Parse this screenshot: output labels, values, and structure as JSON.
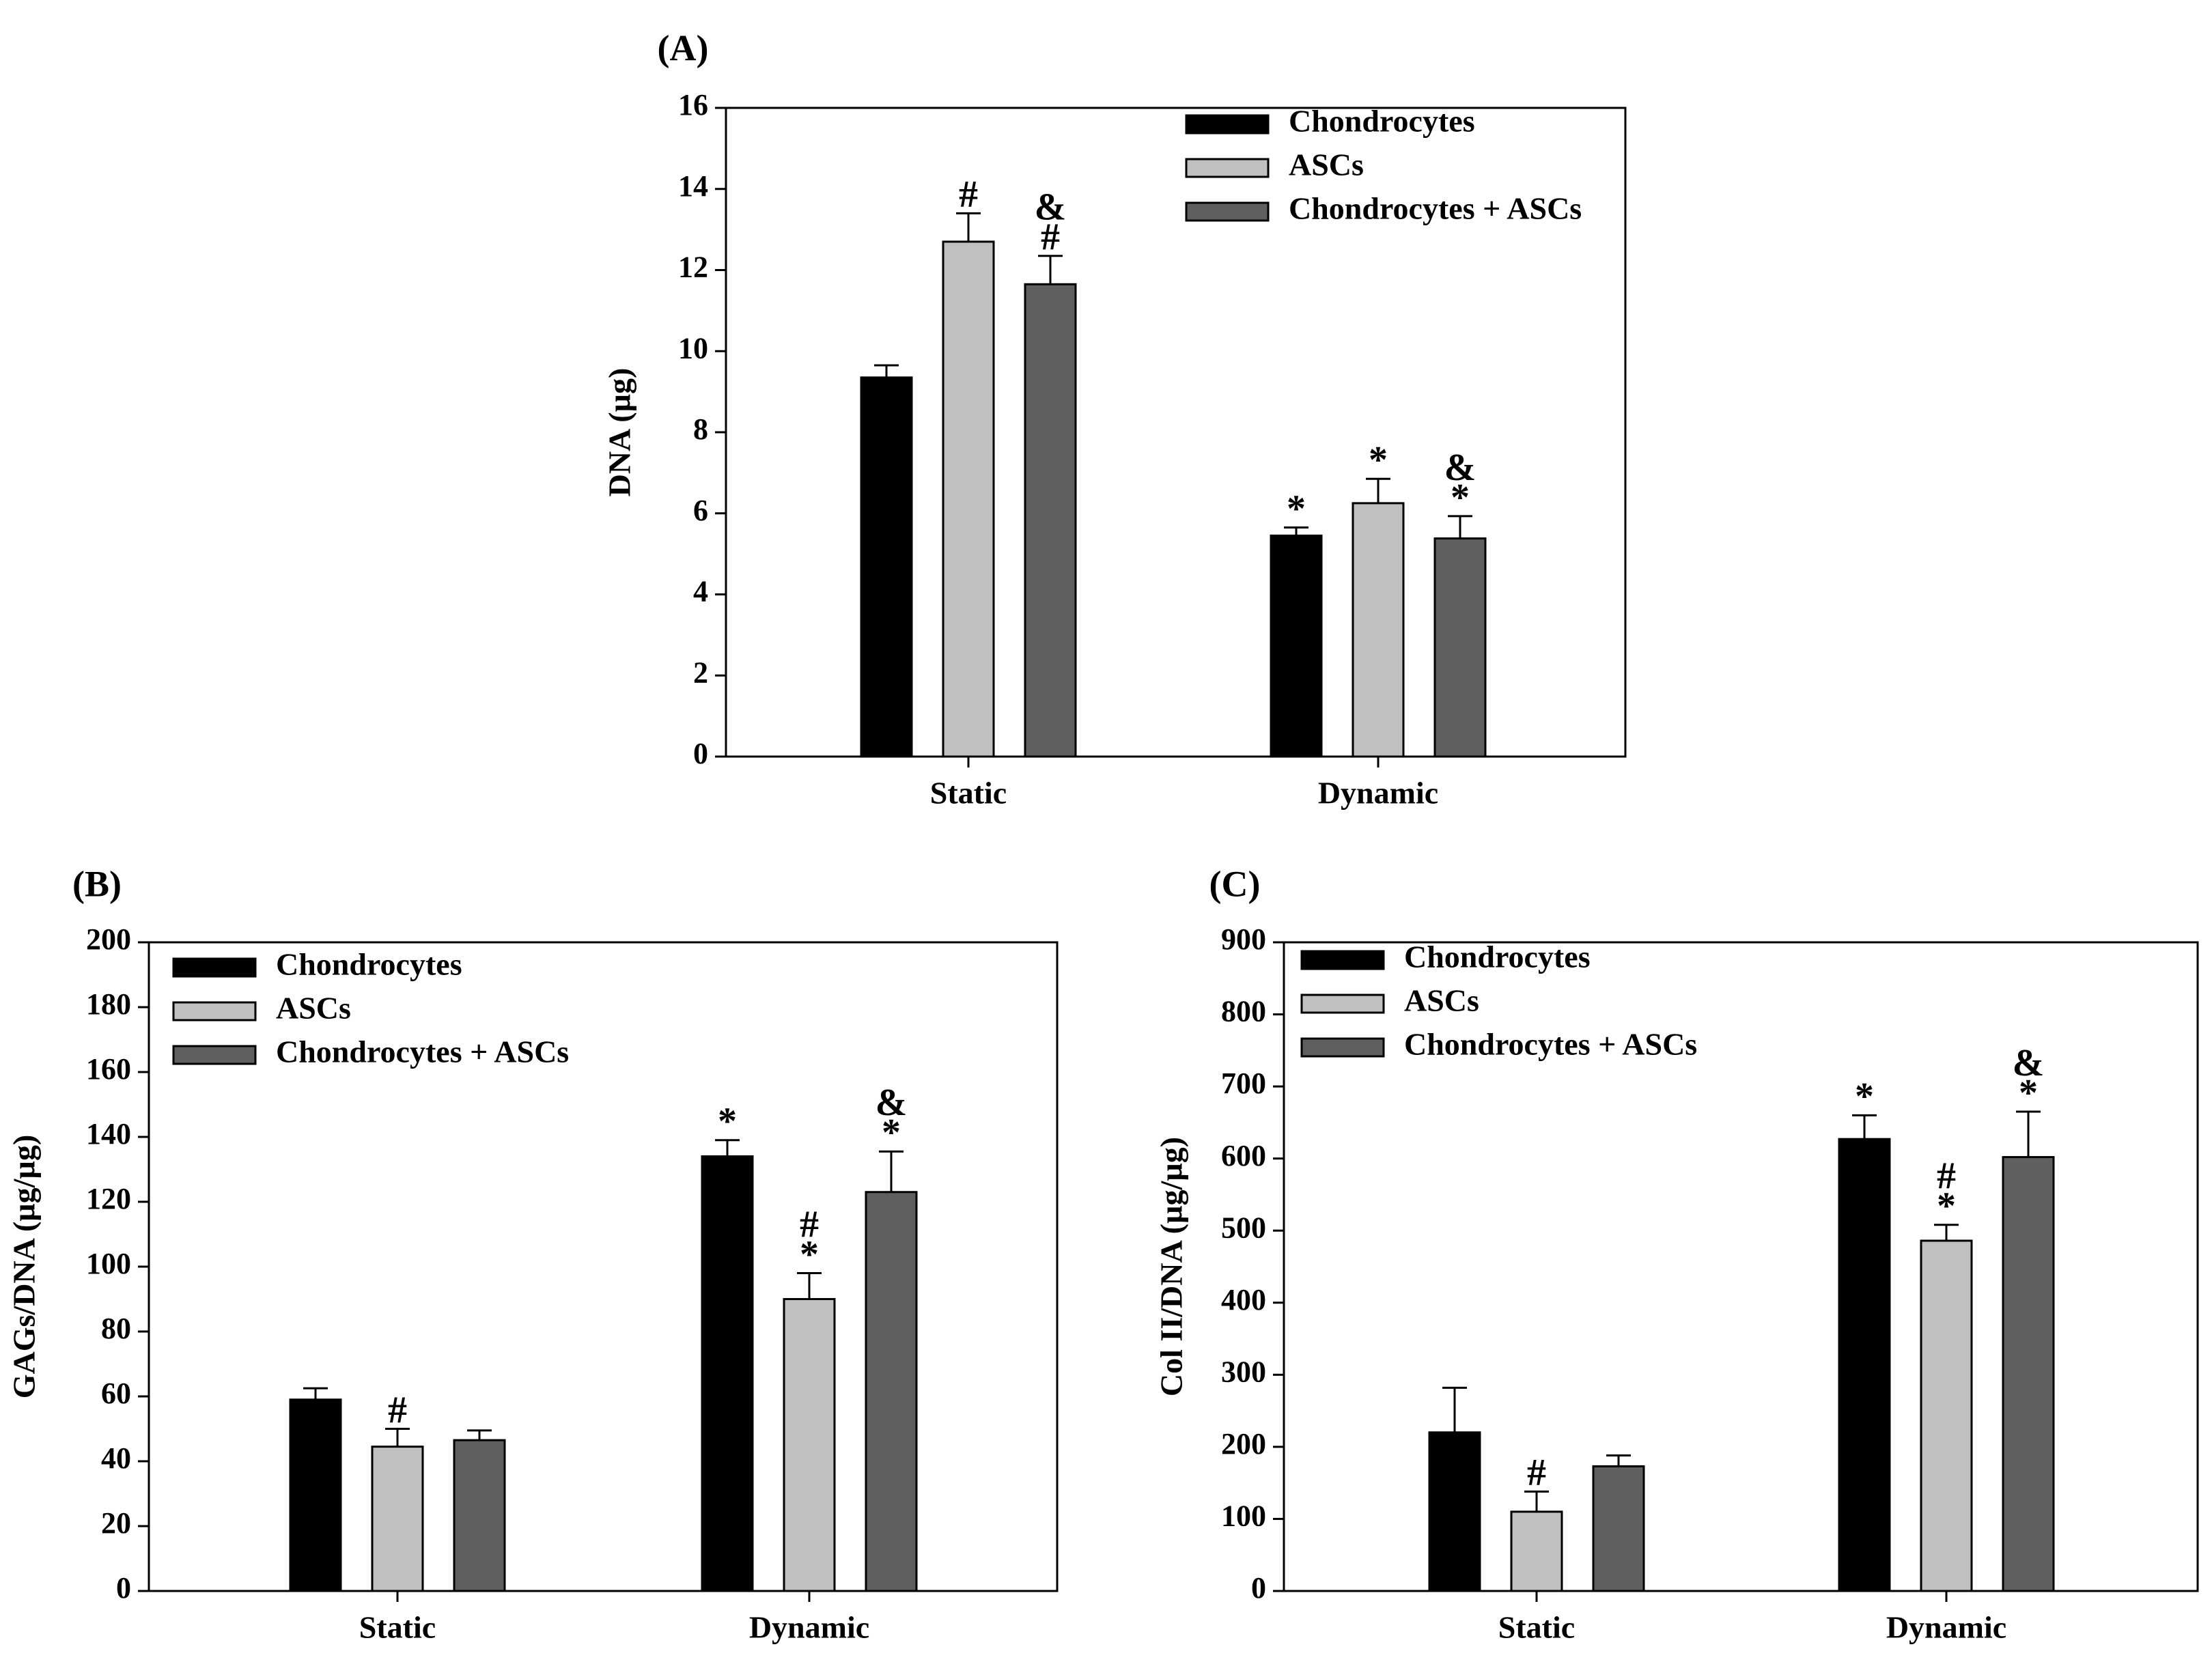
{
  "colors": {
    "chondrocytes": "#000000",
    "ascs": "#c0c0c0",
    "combined": "#5f5f5f",
    "axis": "#000000",
    "background": "#ffffff"
  },
  "chart_data": [
    {
      "id": "A",
      "type": "bar",
      "panel_label": "(A)",
      "title": "",
      "xlabel": "",
      "ylabel": "DNA (µg)",
      "ylim": [
        0,
        16
      ],
      "yticks": [
        "0",
        "2",
        "4",
        "6",
        "8",
        "10",
        "12",
        "14",
        "16"
      ],
      "ytick_values": [
        0,
        2,
        4,
        6,
        8,
        10,
        12,
        14,
        16
      ],
      "categories": [
        "Static",
        "Dynamic"
      ],
      "legend": {
        "placement": "top-right"
      },
      "series": [
        {
          "name": "Chondrocytes",
          "color": "#000000",
          "values": [
            9.35,
            5.45
          ],
          "errors": [
            0.3,
            0.2
          ],
          "marks": [
            [],
            [
              "*"
            ]
          ]
        },
        {
          "name": "ASCs",
          "color": "#c0c0c0",
          "values": [
            12.7,
            6.25
          ],
          "errors": [
            0.7,
            0.6
          ],
          "marks": [
            [
              "#"
            ],
            [
              "*"
            ]
          ]
        },
        {
          "name": "Chondrocytes + ASCs",
          "color": "#5f5f5f",
          "values": [
            11.65,
            5.38
          ],
          "errors": [
            0.7,
            0.55
          ],
          "marks": [
            [
              "#",
              "&"
            ],
            [
              "*",
              "&"
            ]
          ]
        }
      ]
    },
    {
      "id": "B",
      "type": "bar",
      "panel_label": "(B)",
      "title": "",
      "xlabel": "",
      "ylabel": "GAGs/DNA (µg/µg)",
      "ylim": [
        0,
        200
      ],
      "yticks": [
        "0",
        "20",
        "40",
        "60",
        "80",
        "100",
        "120",
        "140",
        "160",
        "180",
        "200"
      ],
      "ytick_values": [
        0,
        20,
        40,
        60,
        80,
        100,
        120,
        140,
        160,
        180,
        200
      ],
      "categories": [
        "Static",
        "Dynamic"
      ],
      "legend": {
        "placement": "top-left"
      },
      "series": [
        {
          "name": "Chondrocytes",
          "color": "#000000",
          "values": [
            59,
            134
          ],
          "errors": [
            3.5,
            5
          ],
          "marks": [
            [],
            [
              "*"
            ]
          ]
        },
        {
          "name": "ASCs",
          "color": "#c0c0c0",
          "values": [
            44.5,
            90
          ],
          "errors": [
            5.5,
            8
          ],
          "marks": [
            [
              "#"
            ],
            [
              "*",
              "#"
            ]
          ]
        },
        {
          "name": "Chondrocytes + ASCs",
          "color": "#5f5f5f",
          "values": [
            46.5,
            123
          ],
          "errors": [
            3,
            12.5
          ],
          "marks": [
            [],
            [
              "*",
              "&"
            ]
          ]
        }
      ]
    },
    {
      "id": "C",
      "type": "bar",
      "panel_label": "(C)",
      "title": "",
      "xlabel": "",
      "ylabel": "Col II/DNA (µg/µg)",
      "ylim": [
        0,
        900
      ],
      "yticks": [
        "0",
        "100",
        "200",
        "300",
        "400",
        "500",
        "600",
        "700",
        "800",
        "900"
      ],
      "ytick_values": [
        0,
        100,
        200,
        300,
        400,
        500,
        600,
        700,
        800,
        900
      ],
      "categories": [
        "Static",
        "Dynamic"
      ],
      "legend": {
        "placement": "top-left"
      },
      "series": [
        {
          "name": "Chondrocytes",
          "color": "#000000",
          "values": [
            220,
            627
          ],
          "errors": [
            62,
            33
          ],
          "marks": [
            [],
            [
              "*"
            ]
          ]
        },
        {
          "name": "ASCs",
          "color": "#c0c0c0",
          "values": [
            110,
            486
          ],
          "errors": [
            28,
            22
          ],
          "marks": [
            [
              "#"
            ],
            [
              "*",
              "#"
            ]
          ]
        },
        {
          "name": "Chondrocytes + ASCs",
          "color": "#5f5f5f",
          "values": [
            173,
            602
          ],
          "errors": [
            15,
            63
          ],
          "marks": [
            [],
            [
              "*",
              "&"
            ]
          ]
        }
      ]
    }
  ]
}
